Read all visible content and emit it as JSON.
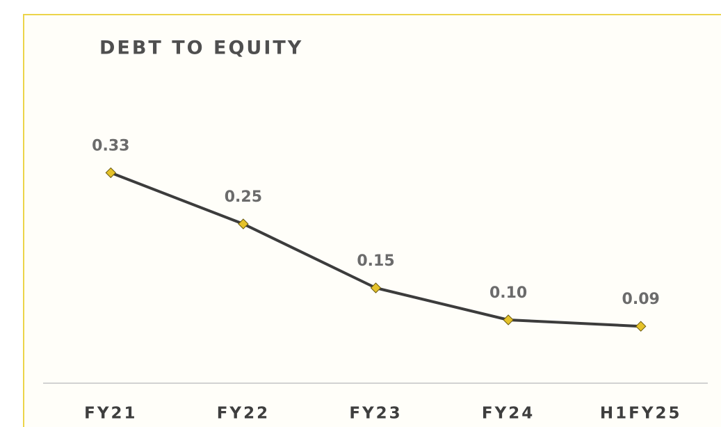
{
  "chart_data": {
    "type": "line",
    "title": "DEBT TO EQUITY",
    "categories": [
      "FY21",
      "FY22",
      "FY23",
      "FY24",
      "H1FY25"
    ],
    "values": [
      0.33,
      0.25,
      0.15,
      0.1,
      0.09
    ],
    "value_labels": [
      "0.33",
      "0.25",
      "0.15",
      "0.10",
      "0.09"
    ],
    "ylim": [
      0,
      0.35
    ],
    "color": "#3c3c3c",
    "marker_color": "#e5c22a"
  }
}
